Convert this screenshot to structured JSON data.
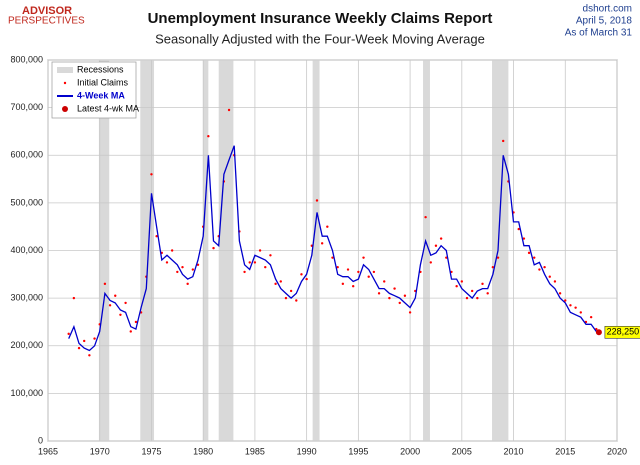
{
  "header": {
    "logo_top": "ADVISOR",
    "logo_bottom": "PERSPECTIVES",
    "site": "dshort.com",
    "date": "April 5, 2018",
    "as_of": "As of March 31"
  },
  "chart_data": {
    "type": "line",
    "title": "Unemployment Insurance Weekly Claims Report",
    "subtitle": "Seasonally Adjusted with the Four-Week Moving Average",
    "x": [
      1967,
      1967.5,
      1968,
      1968.5,
      1969,
      1969.5,
      1970,
      1970.5,
      1971,
      1971.5,
      1972,
      1972.5,
      1973,
      1973.5,
      1974,
      1974.5,
      1975,
      1975.5,
      1976,
      1976.5,
      1977,
      1977.5,
      1978,
      1978.5,
      1979,
      1979.5,
      1980,
      1980.5,
      1981,
      1981.5,
      1982,
      1982.5,
      1983,
      1983.5,
      1984,
      1984.5,
      1985,
      1985.5,
      1986,
      1986.5,
      1987,
      1987.5,
      1988,
      1988.5,
      1989,
      1989.5,
      1990,
      1990.5,
      1991,
      1991.5,
      1992,
      1992.5,
      1993,
      1993.5,
      1994,
      1994.5,
      1995,
      1995.5,
      1996,
      1996.5,
      1997,
      1997.5,
      1998,
      1998.5,
      1999,
      1999.5,
      2000,
      2000.5,
      2001,
      2001.5,
      2002,
      2002.5,
      2003,
      2003.5,
      2004,
      2004.5,
      2005,
      2005.5,
      2006,
      2006.5,
      2007,
      2007.5,
      2008,
      2008.5,
      2009,
      2009.5,
      2010,
      2010.5,
      2011,
      2011.5,
      2012,
      2012.5,
      2013,
      2013.5,
      2014,
      2014.5,
      2015,
      2015.5,
      2016,
      2016.5,
      2017,
      2017.5,
      2018
    ],
    "series": [
      {
        "name": "Initial Claims",
        "color": "#ff0000",
        "values": [
          225000,
          300000,
          195000,
          210000,
          180000,
          215000,
          245000,
          330000,
          285000,
          305000,
          265000,
          290000,
          230000,
          250000,
          270000,
          345000,
          560000,
          430000,
          395000,
          375000,
          400000,
          355000,
          365000,
          330000,
          360000,
          370000,
          450000,
          640000,
          405000,
          430000,
          545000,
          695000,
          600000,
          440000,
          355000,
          375000,
          375000,
          400000,
          365000,
          390000,
          330000,
          335000,
          300000,
          315000,
          295000,
          350000,
          340000,
          410000,
          505000,
          415000,
          450000,
          385000,
          365000,
          330000,
          360000,
          325000,
          355000,
          385000,
          345000,
          355000,
          310000,
          335000,
          300000,
          320000,
          290000,
          305000,
          270000,
          315000,
          355000,
          470000,
          375000,
          410000,
          425000,
          385000,
          355000,
          325000,
          335000,
          300000,
          315000,
          300000,
          330000,
          310000,
          365000,
          385000,
          630000,
          545000,
          480000,
          445000,
          425000,
          395000,
          385000,
          360000,
          365000,
          345000,
          335000,
          310000,
          295000,
          285000,
          280000,
          270000,
          250000,
          260000,
          235000
        ]
      },
      {
        "name": "4-Week MA",
        "color": "#0000cc",
        "values": [
          215000,
          240000,
          205000,
          195000,
          190000,
          200000,
          230000,
          310000,
          295000,
          290000,
          275000,
          270000,
          240000,
          235000,
          280000,
          320000,
          520000,
          450000,
          380000,
          390000,
          380000,
          370000,
          350000,
          340000,
          345000,
          380000,
          430000,
          600000,
          420000,
          410000,
          560000,
          590000,
          620000,
          420000,
          370000,
          360000,
          390000,
          385000,
          380000,
          370000,
          340000,
          320000,
          310000,
          300000,
          310000,
          335000,
          350000,
          390000,
          480000,
          430000,
          430000,
          400000,
          350000,
          345000,
          345000,
          335000,
          340000,
          370000,
          360000,
          340000,
          320000,
          320000,
          310000,
          305000,
          300000,
          290000,
          280000,
          300000,
          370000,
          420000,
          390000,
          395000,
          410000,
          400000,
          340000,
          340000,
          320000,
          310000,
          300000,
          315000,
          320000,
          320000,
          350000,
          400000,
          600000,
          560000,
          460000,
          460000,
          410000,
          410000,
          370000,
          375000,
          350000,
          330000,
          320000,
          300000,
          290000,
          270000,
          265000,
          260000,
          245000,
          245000,
          230000
        ]
      }
    ],
    "latest": {
      "name": "Latest 4-wk MA",
      "color": "#cc0000",
      "x": 2018.25,
      "value": 228250,
      "value_label": "228,250"
    },
    "recessions": {
      "name": "Recessions",
      "color": "#d9d9d9",
      "spans": [
        [
          1969.92,
          1970.92
        ],
        [
          1973.92,
          1975.25
        ],
        [
          1980.0,
          1980.5
        ],
        [
          1981.5,
          1982.92
        ],
        [
          1990.58,
          1991.25
        ],
        [
          2001.25,
          2001.92
        ],
        [
          2007.92,
          2009.5
        ]
      ]
    },
    "xlim": [
      1965,
      2020
    ],
    "xticks": [
      1965,
      1970,
      1975,
      1980,
      1985,
      1990,
      1995,
      2000,
      2005,
      2010,
      2015,
      2020
    ],
    "ylim": [
      0,
      800000
    ],
    "yticks": [
      0,
      {
        "value": 100000,
        "label": "100,000"
      },
      {
        "value": 200000,
        "label": "200,000"
      },
      {
        "value": 300000,
        "label": "300,000"
      },
      {
        "value": 400000,
        "label": "400,000"
      },
      {
        "value": 500000,
        "label": "500,000"
      },
      {
        "value": 600000,
        "label": "600,000"
      },
      {
        "value": 700000,
        "label": "700,000"
      },
      {
        "value": 800000,
        "label": "800,000"
      }
    ],
    "grid": true,
    "legend": "upper left"
  }
}
